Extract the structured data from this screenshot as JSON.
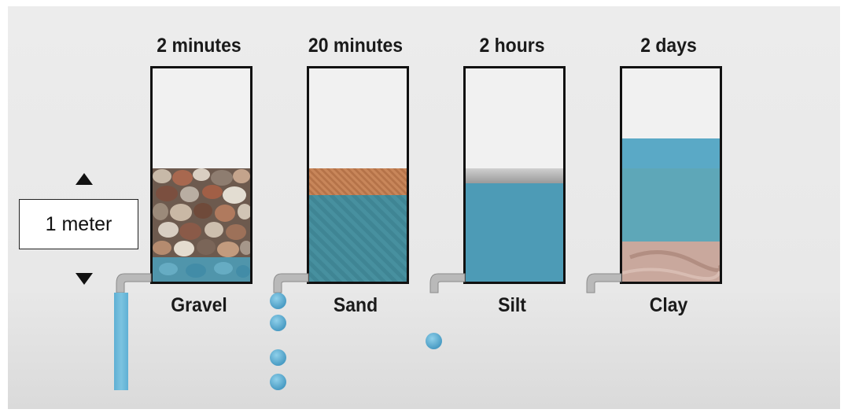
{
  "scale": {
    "label": "1 meter",
    "up_arrow_icon": "triangle-up-icon",
    "down_arrow_icon": "triangle-down-icon"
  },
  "columns": [
    {
      "time": "2 minutes",
      "soil": "Gravel"
    },
    {
      "time": "20 minutes",
      "soil": "Sand"
    },
    {
      "time": "2 hours",
      "soil": "Silt"
    },
    {
      "time": "2 days",
      "soil": "Clay"
    }
  ],
  "colors": {
    "water": "#4d9bb6",
    "sand": "#c8865a",
    "silt": "#a9a9a9",
    "clay": "#c9a89d",
    "frame": "#111111"
  }
}
